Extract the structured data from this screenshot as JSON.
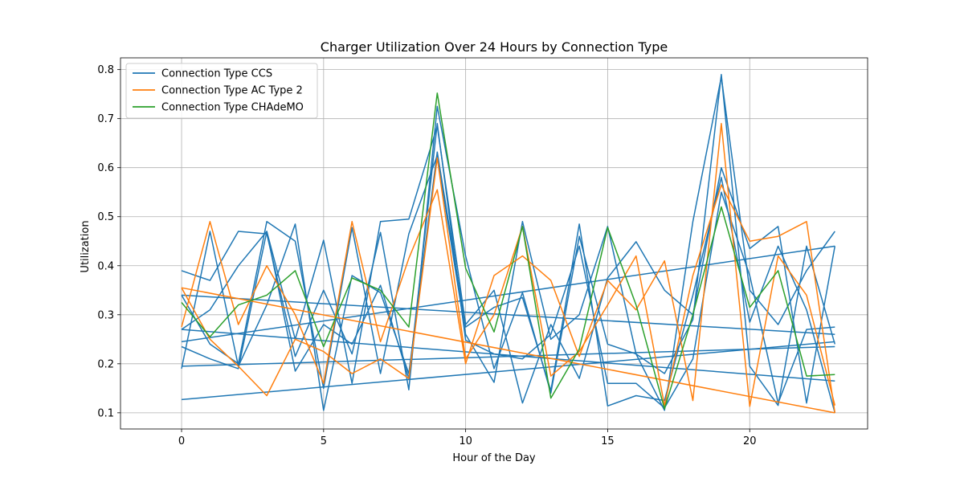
{
  "chart_data": {
    "type": "line",
    "title": "Charger Utilization Over 24 Hours by Connection Type",
    "xlabel": "Hour of the Day",
    "ylabel": "Utilization",
    "xlim": [
      -2.15,
      24.15
    ],
    "ylim": [
      0.067,
      0.824
    ],
    "xticks": [
      0,
      5,
      10,
      15,
      20
    ],
    "yticks": [
      0.1,
      0.2,
      0.3,
      0.4,
      0.5,
      0.6,
      0.7,
      0.8
    ],
    "grid": true,
    "legend_position": "top-left",
    "series": [
      {
        "name": "Connection Type CCS",
        "color": "#1f77b4",
        "segments": [
          {
            "x": [
              0,
              1,
              2,
              3,
              4,
              5,
              6,
              7,
              8,
              9,
              10,
              11,
              12,
              13,
              14,
              15,
              16,
              17,
              18,
              19,
              20,
              21,
              22,
              23
            ],
            "y": [
              0.39,
              0.37,
              0.47,
              0.465,
              0.215,
              0.35,
              0.22,
              0.468,
              0.147,
              0.725,
              0.42,
              0.19,
              0.345,
              0.14,
              0.46,
              0.24,
              0.22,
              0.105,
              0.49,
              0.785,
              0.35,
              0.28,
              0.39,
              0.47
            ]
          },
          {
            "x": [
              23,
              0
            ],
            "y": [
              0.26,
              0.34
            ]
          },
          {
            "x": [
              0,
              1,
              2,
              3,
              4,
              5,
              6,
              7,
              8,
              9,
              10,
              11,
              12,
              13,
              14,
              15,
              16,
              17,
              18,
              19,
              20,
              21,
              22,
              23
            ],
            "y": [
              0.34,
              0.24,
              0.2,
              0.49,
              0.45,
              0.15,
              0.478,
              0.18,
              0.465,
              0.625,
              0.26,
              0.162,
              0.49,
              0.25,
              0.3,
              0.48,
              0.22,
              0.18,
              0.29,
              0.79,
              0.195,
              0.115,
              0.44,
              0.24
            ]
          },
          {
            "x": [
              23,
              0
            ],
            "y": [
              0.165,
              0.27
            ]
          },
          {
            "x": [
              0,
              1,
              2,
              3,
              4,
              5,
              6,
              7,
              8,
              9,
              10,
              11,
              12,
              13,
              14,
              15,
              16,
              17,
              18,
              19,
              20,
              21,
              22,
              23
            ],
            "y": [
              0.27,
              0.31,
              0.4,
              0.47,
              0.25,
              0.452,
              0.16,
              0.49,
              0.495,
              0.685,
              0.28,
              0.35,
              0.12,
              0.28,
              0.17,
              0.375,
              0.449,
              0.35,
              0.3,
              0.6,
              0.435,
              0.48,
              0.12,
              0.44
            ]
          },
          {
            "x": [
              23,
              0
            ],
            "y": [
              0.245,
              0.127
            ]
          },
          {
            "x": [
              0,
              1,
              2,
              3,
              4,
              5,
              6,
              7,
              8,
              9,
              10,
              11,
              12,
              13,
              14,
              15,
              16,
              17,
              18,
              19,
              20,
              21,
              22,
              23
            ],
            "y": [
              0.19,
              0.47,
              0.195,
              0.32,
              0.485,
              0.105,
              0.38,
              0.345,
              0.18,
              0.632,
              0.275,
              0.315,
              0.335,
              0.145,
              0.485,
              0.114,
              0.135,
              0.125,
              0.34,
              0.58,
              0.285,
              0.44,
              0.31,
              0.1
            ]
          },
          {
            "x": [
              23,
              0
            ],
            "y": [
              0.44,
              0.245
            ]
          },
          {
            "x": [
              0,
              1,
              2,
              3,
              4,
              5,
              6,
              7,
              8,
              9,
              10,
              11,
              12,
              13,
              14,
              15,
              16,
              17,
              18,
              19,
              20,
              21,
              22,
              23
            ],
            "y": [
              0.235,
              0.21,
              0.19,
              0.47,
              0.185,
              0.28,
              0.24,
              0.36,
              0.17,
              0.69,
              0.248,
              0.22,
              0.21,
              0.26,
              0.44,
              0.16,
              0.16,
              0.11,
              0.21,
              0.55,
              0.38,
              0.12,
              0.27,
              0.275
            ]
          },
          {
            "x": [
              23,
              0
            ],
            "y": [
              0.235,
              0.195
            ]
          }
        ]
      },
      {
        "name": "Connection Type AC Type 2",
        "color": "#ff7f0e",
        "segments": [
          {
            "x": [
              0,
              1,
              2,
              3,
              4,
              5,
              6,
              7,
              8,
              9,
              10,
              11,
              12,
              13,
              14,
              15,
              16,
              17,
              18,
              19,
              20,
              21,
              22,
              23
            ],
            "y": [
              0.275,
              0.49,
              0.28,
              0.4,
              0.3,
              0.16,
              0.49,
              0.245,
              0.415,
              0.555,
              0.2,
              0.38,
              0.42,
              0.37,
              0.215,
              0.37,
              0.31,
              0.41,
              0.125,
              0.69,
              0.113,
              0.42,
              0.34,
              0.115
            ]
          },
          {
            "x": [
              23,
              0
            ],
            "y": [
              0.1,
              0.355
            ]
          },
          {
            "x": [
              0,
              1,
              2,
              3,
              4,
              5,
              6,
              7,
              8,
              9,
              10,
              11,
              12,
              13,
              14,
              15,
              16,
              17,
              18,
              19,
              20,
              21,
              22,
              23
            ],
            "y": [
              0.355,
              0.25,
              0.195,
              0.135,
              0.25,
              0.225,
              0.18,
              0.21,
              0.17,
              0.62,
              0.21,
              0.3,
              0.48,
              0.175,
              0.225,
              0.32,
              0.42,
              0.115,
              0.38,
              0.565,
              0.45,
              0.46,
              0.49,
              0.1
            ]
          }
        ]
      },
      {
        "name": "Connection Type CHAdeMO",
        "color": "#2ca02c",
        "segments": [
          {
            "x": [
              0,
              1,
              2,
              3,
              4,
              5,
              6,
              7,
              8,
              9,
              10,
              11,
              12,
              13,
              14,
              15,
              16,
              17,
              18,
              19,
              20,
              21,
              22,
              23
            ],
            "y": [
              0.325,
              0.255,
              0.32,
              0.34,
              0.39,
              0.235,
              0.375,
              0.35,
              0.275,
              0.752,
              0.395,
              0.265,
              0.48,
              0.13,
              0.23,
              0.478,
              0.32,
              0.108,
              0.3,
              0.52,
              0.315,
              0.39,
              0.175,
              0.178
            ]
          }
        ]
      }
    ]
  }
}
